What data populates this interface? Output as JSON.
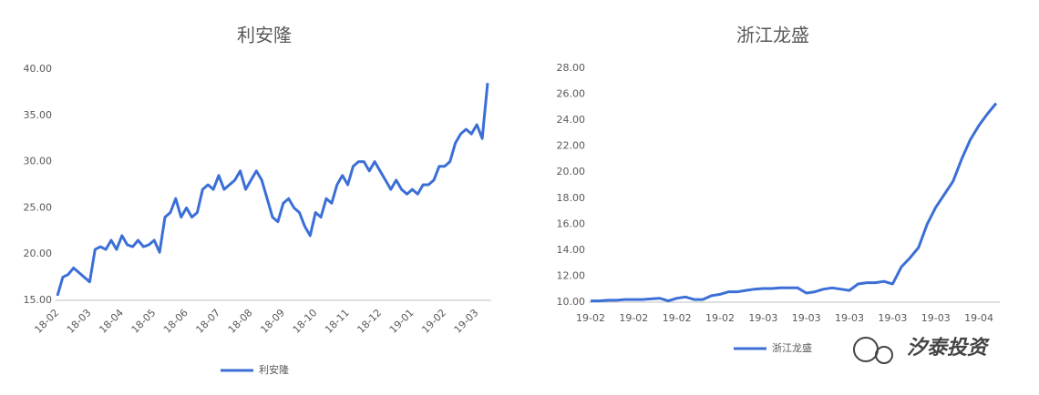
{
  "chart_data": [
    {
      "type": "line",
      "title": "利安隆",
      "categories": [
        "18-02",
        null,
        null,
        null,
        null,
        null,
        "18-03",
        null,
        null,
        null,
        null,
        null,
        "18-04",
        null,
        null,
        null,
        null,
        null,
        "18-05",
        null,
        null,
        null,
        null,
        null,
        "18-06",
        null,
        null,
        null,
        null,
        null,
        "18-07",
        null,
        null,
        null,
        null,
        null,
        "18-08",
        null,
        null,
        null,
        null,
        null,
        "18-09",
        null,
        null,
        null,
        null,
        null,
        "18-10",
        null,
        null,
        null,
        null,
        null,
        "18-11",
        null,
        null,
        null,
        null,
        null,
        "18-12",
        null,
        null,
        null,
        null,
        null,
        "19-01",
        null,
        null,
        null,
        null,
        null,
        "19-02",
        null,
        null,
        null,
        null,
        null,
        "19-03",
        null,
        null
      ],
      "series": [
        {
          "name": "利安隆",
          "color": "#3b6fd6",
          "values": [
            15.5,
            17.5,
            17.8,
            18.5,
            18,
            17.5,
            17,
            20.5,
            20.8,
            20.5,
            21.5,
            20.5,
            22,
            21,
            20.8,
            21.5,
            20.8,
            21,
            21.5,
            20.2,
            24,
            24.5,
            26,
            24,
            25,
            24,
            24.5,
            27,
            27.5,
            27,
            28.5,
            27,
            27.5,
            28,
            29,
            27,
            28,
            29,
            28,
            26,
            24,
            23.5,
            25.5,
            26,
            25,
            24.5,
            23,
            22,
            24.5,
            24,
            26,
            25.5,
            27.5,
            28.5,
            27.5,
            29.5,
            30,
            30,
            29,
            30,
            29,
            28,
            27,
            28,
            27,
            26.5,
            27,
            26.5,
            27.5,
            27.5,
            28,
            29.5,
            29.5,
            30,
            32,
            33,
            33.5,
            33,
            34,
            32.5,
            38.5
          ]
        }
      ],
      "ylim": [
        15,
        40
      ],
      "yticks": [
        {
          "value": 15,
          "label": "15.00"
        },
        {
          "value": 20,
          "label": "20.00"
        },
        {
          "value": 25,
          "label": "25.00"
        },
        {
          "value": 30,
          "label": "30.00"
        },
        {
          "value": 35,
          "label": "35.00"
        },
        {
          "value": 40,
          "label": "40.00"
        }
      ],
      "grid": false,
      "legend": "bottom"
    },
    {
      "type": "line",
      "title": "浙江龙盛",
      "categories": [
        "19-02",
        null,
        null,
        null,
        null,
        "19-02",
        null,
        null,
        null,
        null,
        "19-02",
        null,
        null,
        null,
        null,
        "19-02",
        null,
        null,
        null,
        null,
        "19-03",
        null,
        null,
        null,
        null,
        "19-03",
        null,
        null,
        null,
        null,
        "19-03",
        null,
        null,
        null,
        null,
        "19-03",
        null,
        null,
        null,
        null,
        "19-03",
        null,
        null,
        null,
        null,
        "19-04",
        null,
        null
      ],
      "series": [
        {
          "name": "浙江龙盛",
          "color": "#3b6fd6",
          "values": [
            10.1,
            10.1,
            10.15,
            10.15,
            10.2,
            10.2,
            10.2,
            10.25,
            10.3,
            10.1,
            10.3,
            10.4,
            10.2,
            10.2,
            10.5,
            10.6,
            10.8,
            10.8,
            10.9,
            11,
            11.05,
            11.05,
            11.1,
            11.1,
            11.1,
            10.7,
            10.8,
            11,
            11.1,
            11,
            10.9,
            11.4,
            11.5,
            11.5,
            11.6,
            11.4,
            12.7,
            13.4,
            14.2,
            16,
            17.3,
            18.3,
            19.3,
            21,
            22.5,
            23.6,
            24.5,
            25.3
          ]
        }
      ],
      "ylim": [
        10,
        28
      ],
      "yticks": [
        {
          "value": 10,
          "label": "10.00"
        },
        {
          "value": 12,
          "label": "12.00"
        },
        {
          "value": 14,
          "label": "14.00"
        },
        {
          "value": 16,
          "label": "16.00"
        },
        {
          "value": 18,
          "label": "18.00"
        },
        {
          "value": 20,
          "label": "20.00"
        },
        {
          "value": 22,
          "label": "22.00"
        },
        {
          "value": 24,
          "label": "24.00"
        },
        {
          "value": 26,
          "label": "26.00"
        },
        {
          "value": 28,
          "label": "28.00"
        }
      ],
      "grid": false,
      "legend": "bottom"
    }
  ],
  "watermark": "汐泰投资"
}
